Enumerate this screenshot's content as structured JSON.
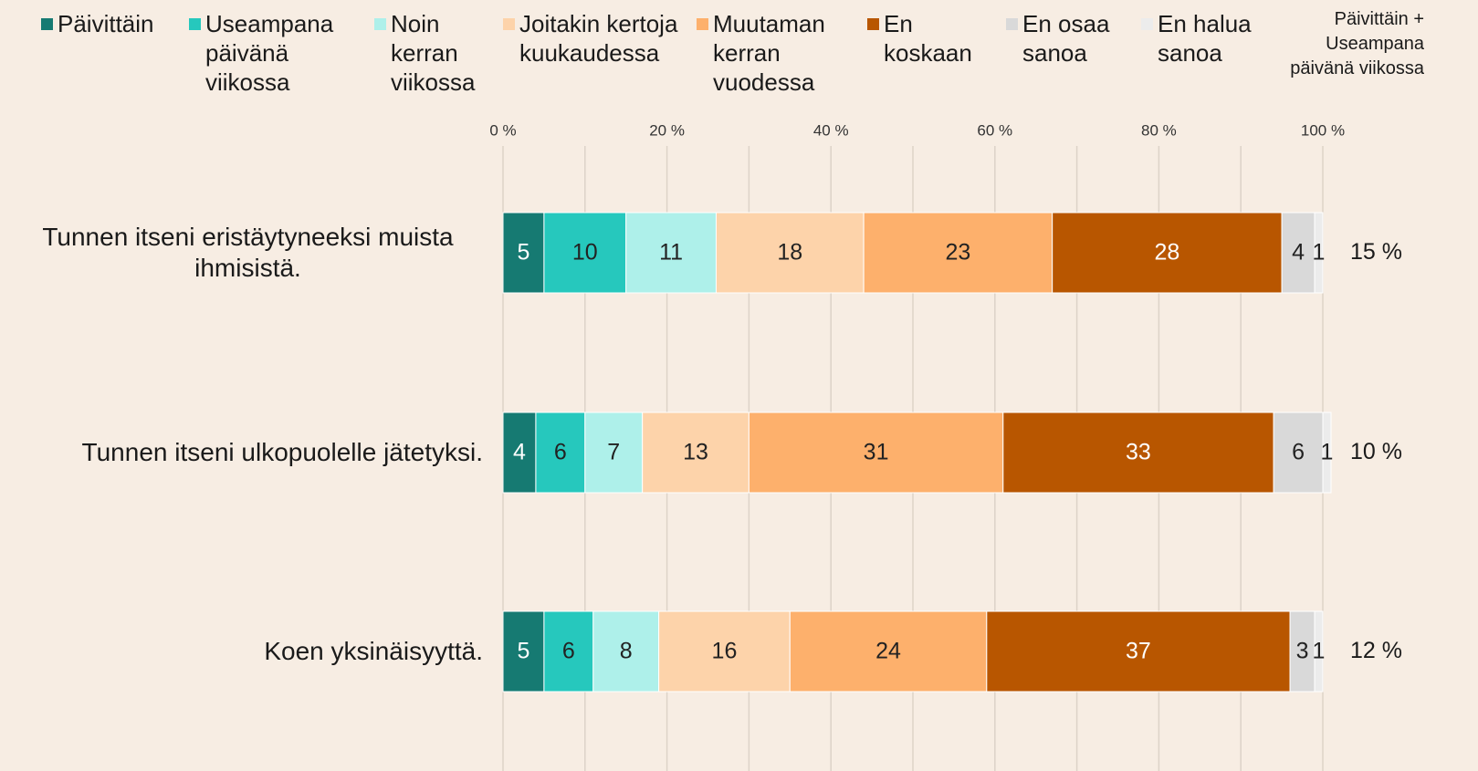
{
  "chart_data": {
    "type": "stacked_barh",
    "categories": [
      "Tunnen itseni eristäytyneeksi muista ihmisistä.",
      "Tunnen itseni ulkopuolelle jätetyksi.",
      "Koen yksinäisyyttä."
    ],
    "series": [
      {
        "name": "Päivittäin",
        "color": "#167a72",
        "values": [
          5,
          4,
          5
        ]
      },
      {
        "name": "Useampana päivänä viikossa",
        "color": "#26c8bd",
        "values": [
          10,
          6,
          6
        ]
      },
      {
        "name": "Noin kerran viikossa",
        "color": "#aef0ea",
        "values": [
          11,
          7,
          8
        ]
      },
      {
        "name": "Joitakin kertoja kuukaudessa",
        "color": "#fdd3aa",
        "values": [
          18,
          13,
          16
        ]
      },
      {
        "name": "Muutaman kerran vuodessa",
        "color": "#fdb06c",
        "values": [
          23,
          31,
          24
        ]
      },
      {
        "name": "En koskaan",
        "color": "#b85600",
        "values": [
          28,
          33,
          37
        ]
      },
      {
        "name": "En osaa sanoa",
        "color": "#d9d9d9",
        "values": [
          4,
          6,
          3
        ]
      },
      {
        "name": "En halua sanoa",
        "color": "#ececec",
        "values": [
          1,
          1,
          1
        ]
      }
    ],
    "xlim": [
      0,
      100
    ],
    "xticks": [
      {
        "value": 0,
        "label": "0 %"
      },
      {
        "value": 20,
        "label": "20 %"
      },
      {
        "value": 40,
        "label": "40 %"
      },
      {
        "value": 60,
        "label": "60 %"
      },
      {
        "value": 80,
        "label": "80 %"
      },
      {
        "value": 100,
        "label": "100 %"
      }
    ],
    "xgrid": [
      0,
      10,
      20,
      30,
      40,
      50,
      60,
      70,
      80,
      90,
      100
    ],
    "legend": "top",
    "totals": {
      "name": "Päivittäin + Useampana päivänä viikossa",
      "values": [
        15,
        10,
        12
      ],
      "value_labels": [
        "15 %",
        "10 %",
        "12 %"
      ]
    }
  }
}
